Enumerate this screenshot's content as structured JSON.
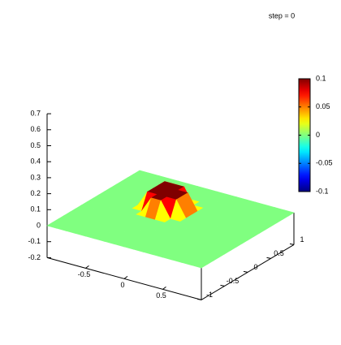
{
  "chart_data": {
    "type": "surface3d",
    "title": "step = 0",
    "x": [
      -1,
      -0.875,
      -0.75,
      -0.625,
      -0.5,
      -0.375,
      -0.25,
      -0.125,
      0,
      0.125,
      0.25,
      0.375,
      0.5,
      0.625,
      0.75,
      0.875,
      1
    ],
    "y": [
      -1,
      -0.875,
      -0.75,
      -0.625,
      -0.5,
      -0.375,
      -0.25,
      -0.125,
      0,
      0.125,
      0.25,
      0.375,
      0.5,
      0.625,
      0.75,
      0.875,
      1
    ],
    "z": [
      [
        0,
        0,
        0,
        0,
        0,
        0,
        0,
        0,
        0,
        0,
        0,
        0,
        0,
        0,
        0,
        0,
        0
      ],
      [
        0,
        0,
        0,
        0,
        0,
        0,
        0,
        0,
        0,
        0,
        0,
        0,
        0,
        0,
        0,
        0,
        0
      ],
      [
        0,
        0,
        0,
        0,
        0,
        0,
        0,
        0,
        0,
        0,
        0,
        0,
        0,
        0,
        0,
        0,
        0
      ],
      [
        0,
        0,
        0,
        0,
        0,
        0,
        0,
        0,
        0,
        0,
        0,
        0,
        0,
        0,
        0,
        0,
        0
      ],
      [
        0,
        0,
        0,
        0,
        0,
        0,
        0,
        0,
        0,
        0,
        0,
        0,
        0,
        0,
        0,
        0,
        0
      ],
      [
        0,
        0,
        0,
        0,
        0,
        0,
        0,
        0,
        0,
        0,
        0,
        0,
        0,
        0,
        0,
        0,
        0
      ],
      [
        0,
        0,
        0,
        0,
        0,
        0,
        0,
        0,
        0,
        0,
        0,
        0,
        0,
        0,
        0,
        0,
        0
      ],
      [
        0,
        0,
        0,
        0,
        0,
        0,
        0,
        0,
        0,
        0,
        0,
        0,
        0,
        0,
        0,
        0,
        0
      ],
      [
        0,
        0,
        0,
        0,
        0,
        0,
        0.1,
        0.1,
        0,
        0,
        0,
        0,
        0,
        0,
        0,
        0,
        0
      ],
      [
        0,
        0,
        0,
        0,
        0,
        0.1,
        0.1,
        0.1,
        0.1,
        0,
        0,
        0,
        0,
        0,
        0,
        0,
        0
      ],
      [
        0,
        0,
        0,
        0,
        0,
        0.1,
        0.1,
        0.1,
        0.1,
        0,
        0,
        0,
        0,
        0,
        0,
        0,
        0
      ],
      [
        0,
        0,
        0,
        0,
        0,
        0.1,
        0.1,
        0.1,
        0.1,
        0,
        0,
        0,
        0,
        0,
        0,
        0,
        0
      ],
      [
        0,
        0,
        0,
        0,
        0,
        0.1,
        0.1,
        0.1,
        0,
        0,
        0,
        0,
        0,
        0,
        0,
        0,
        0
      ],
      [
        0,
        0,
        0,
        0,
        0,
        0,
        0,
        0,
        0,
        0,
        0,
        0,
        0,
        0,
        0,
        0,
        0
      ],
      [
        0,
        0,
        0,
        0,
        0,
        0,
        0,
        0,
        0,
        0,
        0,
        0,
        0,
        0,
        0,
        0,
        0
      ],
      [
        0,
        0,
        0,
        0,
        0,
        0,
        0,
        0,
        0,
        0,
        0,
        0,
        0,
        0,
        0,
        0,
        0
      ],
      [
        0,
        0,
        0,
        0,
        0,
        0,
        0,
        0,
        0,
        0,
        0,
        0,
        0,
        0,
        0,
        0,
        0
      ]
    ],
    "xlim": [
      -1,
      1
    ],
    "xticks": [
      -0.5,
      0,
      0.5
    ],
    "ylim": [
      -1,
      1
    ],
    "yticks": [
      -1,
      -0.5,
      0,
      0.5,
      1
    ],
    "zlim": [
      -0.2,
      0.7
    ],
    "zticks": [
      -0.2,
      -0.1,
      0,
      0.1,
      0.2,
      0.3,
      0.4,
      0.5,
      0.6,
      0.7
    ],
    "cblim": [
      -0.1,
      0.1
    ],
    "cbticks": [
      -0.1,
      -0.05,
      0,
      0.05,
      0.1
    ],
    "palette": "jet"
  }
}
